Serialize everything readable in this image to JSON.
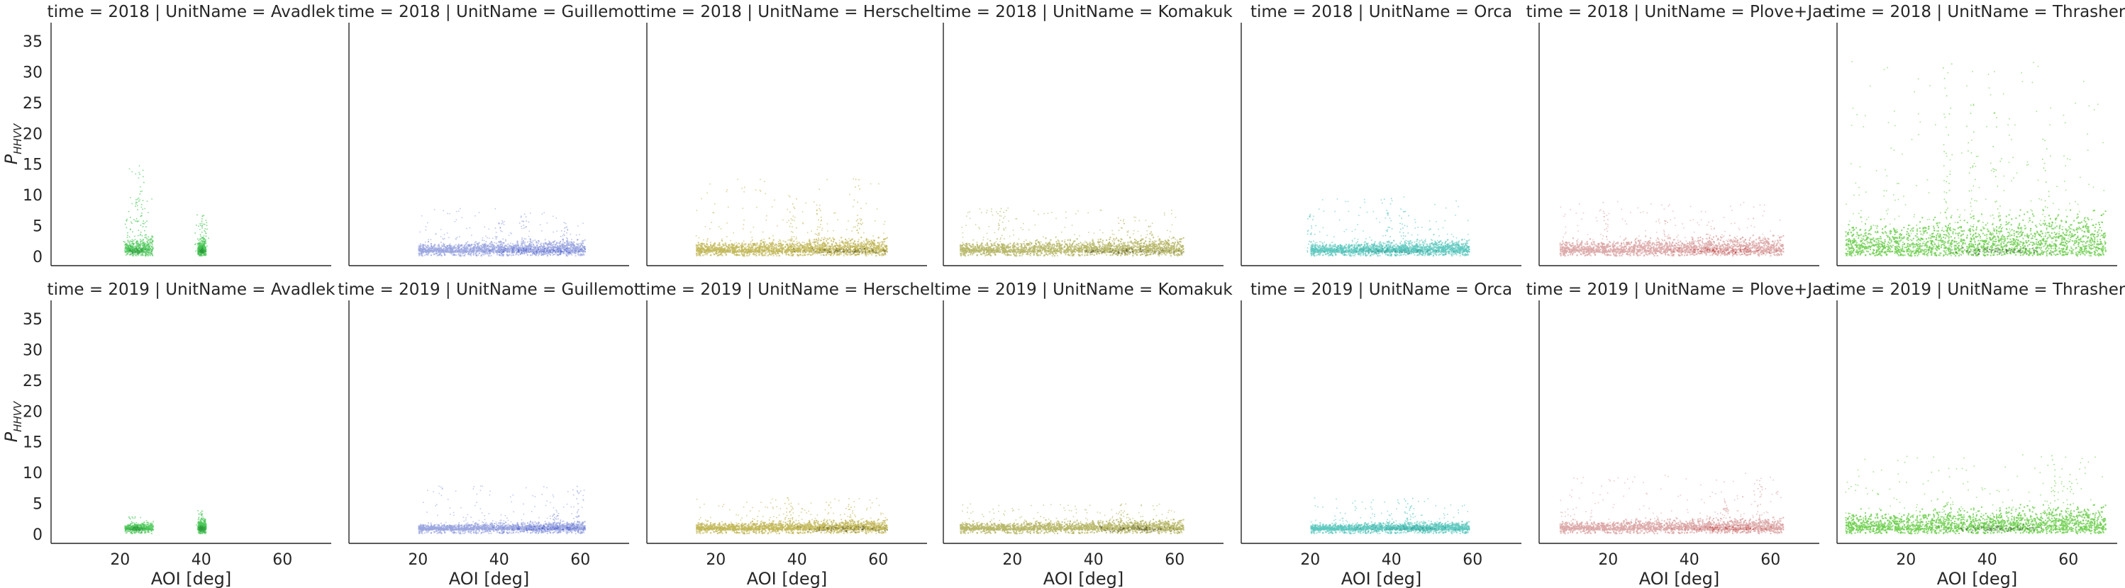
{
  "chart_data": {
    "type": "scatter",
    "layout": "facet-grid",
    "row_variable": "time",
    "col_variable": "UnitName",
    "rows": [
      "2018",
      "2019"
    ],
    "cols": [
      "Avadlek",
      "Guillemot",
      "Herschel",
      "Komakuk",
      "Orca",
      "Plove+Jae",
      "Thrasher"
    ],
    "xlabel": "AOI [deg]",
    "ylabel": "P",
    "ylabel_sub": "HHVV",
    "xlim": [
      3,
      72
    ],
    "ylim": [
      -1.5,
      38
    ],
    "xticks": [
      20,
      40,
      60
    ],
    "yticks": [
      0,
      5,
      10,
      15,
      20,
      25,
      30,
      35
    ],
    "grid": false,
    "panel_titles": [
      [
        "time = 2018 | UnitName = Avadlek",
        "time = 2018 | UnitName = Guillemot",
        "time = 2018 | UnitName = Herschel",
        "time = 2018 | UnitName = Komakuk",
        "time = 2018 | UnitName = Orca",
        "time = 2018 | UnitName = Plove+Jae",
        "time = 2018 | UnitName = Thrasher"
      ],
      [
        "time = 2019 | UnitName = Avadlek",
        "time = 2019 | UnitName = Guillemot",
        "time = 2019 | UnitName = Herschel",
        "time = 2019 | UnitName = Komakuk",
        "time = 2019 | UnitName = Orca",
        "time = 2019 | UnitName = Plove+Jae",
        "time = 2019 | UnitName = Thrasher"
      ]
    ],
    "colors": {
      "Avadlek": "#4cc85a",
      "Guillemot": "#9aa6e0",
      "Herschel": "#c2b85a",
      "Komakuk": "#b8b86a",
      "Orca": "#5cc8c0",
      "Plove+Jae": "#dca8a8",
      "Thrasher": "#70d050"
    },
    "core_colors": {
      "Avadlek": "#2f9c3c",
      "Guillemot": "#2238c8",
      "Herschel": "#3a3a10",
      "Komakuk": "#3a3a10",
      "Orca": "#1c8a84",
      "Plove+Jae": "#c02020",
      "Thrasher": "#1a3a10"
    },
    "clusters": [
      [
        {
          "unit": "Avadlek",
          "x": [
            21,
            28
          ],
          "base": 0.8,
          "width": 4,
          "peak": 15,
          "spikes": [
            [
              25,
              15
            ],
            [
              24,
              10
            ],
            [
              22,
              8
            ]
          ],
          "core": [
            24,
            1
          ]
        },
        {
          "unit": "Avadlek",
          "x": [
            39,
            41
          ],
          "base": 0.8,
          "width": 3.5,
          "peak": 7,
          "spikes": [
            [
              39.5,
              7
            ],
            [
              40.5,
              6
            ]
          ],
          "core": [
            40,
            1
          ]
        },
        {
          "unit": "Guillemot",
          "x": [
            20,
            61
          ],
          "base": 0.8,
          "width": 3,
          "peak": 8,
          "spikes": [
            [
              40,
              6
            ],
            [
              46,
              7
            ],
            [
              56,
              6
            ]
          ],
          "core": [
            50,
            1
          ]
        },
        {
          "unit": "Herschel",
          "x": [
            15,
            62
          ],
          "base": 0.8,
          "width": 3.5,
          "peak": 13,
          "spikes": [
            [
              39,
              10
            ],
            [
              45,
              8
            ],
            [
              55,
              13
            ]
          ],
          "core": [
            52,
            1
          ]
        },
        {
          "unit": "Komakuk",
          "x": [
            7,
            62
          ],
          "base": 0.8,
          "width": 3.5,
          "peak": 8,
          "spikes": [
            [
              17,
              8
            ],
            [
              47,
              7
            ],
            [
              54,
              6
            ]
          ],
          "core": [
            50,
            1
          ]
        },
        {
          "unit": "Orca",
          "x": [
            20,
            59
          ],
          "base": 0.8,
          "width": 3,
          "peak": 10,
          "spikes": [
            [
              20,
              7
            ],
            [
              39,
              10
            ],
            [
              43,
              8
            ]
          ],
          "core": [
            40,
            1
          ]
        },
        {
          "unit": "Plove+Jae",
          "x": [
            8,
            63
          ],
          "base": 0.8,
          "width": 4,
          "peak": 9,
          "spikes": [
            [
              19,
              9
            ],
            [
              34,
              6
            ],
            [
              45,
              6
            ]
          ],
          "core": [
            48,
            1
          ]
        },
        {
          "unit": "Thrasher",
          "x": [
            5,
            69
          ],
          "base": 0.8,
          "width": 10,
          "peak": 32,
          "spikes": [
            [
              30,
              32
            ],
            [
              36,
              25
            ],
            [
              42,
              24
            ],
            [
              54,
              20
            ]
          ],
          "core": [
            42,
            1
          ]
        }
      ],
      [
        {
          "unit": "Avadlek",
          "x": [
            21,
            28
          ],
          "base": 0.8,
          "width": 2,
          "peak": 3,
          "spikes": [
            [
              23,
              3
            ]
          ],
          "core": [
            24,
            1
          ]
        },
        {
          "unit": "Avadlek",
          "x": [
            39,
            41
          ],
          "base": 0.8,
          "width": 3,
          "peak": 4,
          "spikes": [
            [
              39.5,
              4
            ]
          ],
          "core": [
            40,
            1
          ]
        },
        {
          "unit": "Guillemot",
          "x": [
            20,
            61
          ],
          "base": 0.8,
          "width": 2,
          "peak": 8,
          "spikes": [
            [
              59,
              8
            ],
            [
              54,
              4
            ]
          ],
          "core": [
            52,
            1
          ]
        },
        {
          "unit": "Herschel",
          "x": [
            15,
            62
          ],
          "base": 0.8,
          "width": 2.5,
          "peak": 6,
          "spikes": [
            [
              38,
              6
            ],
            [
              53,
              5
            ]
          ],
          "core": [
            52,
            1
          ]
        },
        {
          "unit": "Komakuk",
          "x": [
            7,
            62
          ],
          "base": 0.8,
          "width": 2.5,
          "peak": 5,
          "spikes": [
            [
              47,
              5
            ]
          ],
          "core": [
            50,
            1
          ]
        },
        {
          "unit": "Orca",
          "x": [
            20,
            59
          ],
          "base": 0.8,
          "width": 2,
          "peak": 6,
          "spikes": [
            [
              44,
              6
            ]
          ],
          "core": [
            44,
            1
          ]
        },
        {
          "unit": "Plove+Jae",
          "x": [
            8,
            63
          ],
          "base": 0.8,
          "width": 3,
          "peak": 10,
          "spikes": [
            [
              57,
              10
            ],
            [
              49,
              6
            ]
          ],
          "core": [
            50,
            1
          ]
        },
        {
          "unit": "Thrasher",
          "x": [
            5,
            69
          ],
          "base": 0.8,
          "width": 6,
          "peak": 13,
          "spikes": [
            [
              56,
              13
            ],
            [
              60,
              10
            ],
            [
              30,
              6
            ]
          ],
          "core": [
            43,
            1
          ]
        }
      ]
    ]
  }
}
